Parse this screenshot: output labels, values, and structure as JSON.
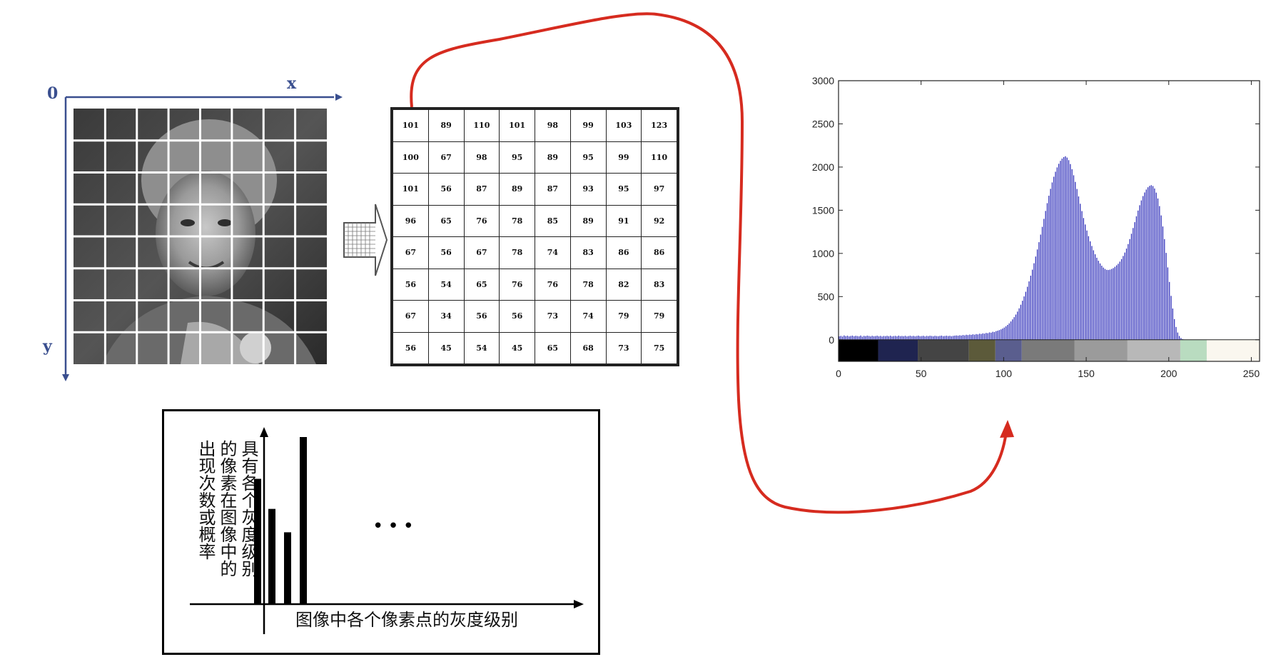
{
  "image_grid": {
    "origin_label": "0",
    "x_axis_label": "x",
    "y_axis_label": "y"
  },
  "pixel_matrix": {
    "rows": [
      [
        "101",
        "89",
        "110",
        "101",
        "98",
        "99",
        "103",
        "123"
      ],
      [
        "100",
        "67",
        "98",
        "95",
        "89",
        "95",
        "99",
        "110"
      ],
      [
        "101",
        "56",
        "87",
        "89",
        "87",
        "93",
        "95",
        "97"
      ],
      [
        "96",
        "65",
        "76",
        "78",
        "85",
        "89",
        "91",
        "92"
      ],
      [
        "67",
        "56",
        "67",
        "78",
        "74",
        "83",
        "86",
        "86"
      ],
      [
        "56",
        "54",
        "65",
        "76",
        "76",
        "78",
        "82",
        "83"
      ],
      [
        "67",
        "34",
        "56",
        "56",
        "73",
        "74",
        "79",
        "79"
      ],
      [
        "56",
        "45",
        "54",
        "45",
        "65",
        "68",
        "73",
        "75"
      ]
    ]
  },
  "concept_diagram": {
    "y_label_columns": [
      "具有各个灰度级别",
      "的像素在图像中的",
      "出现次数或概率"
    ],
    "x_label": "图像中各个像素点的灰度级别",
    "ellipsis": "•••",
    "bar_values": [
      0.75,
      0.57,
      0.43,
      1.0
    ]
  },
  "colors": {
    "grid_axis": "#3a4f8f",
    "arrow": "#d62b1f",
    "hist_bar": "#2a2ab8"
  },
  "chart_data": {
    "type": "bar",
    "xlim": [
      0,
      255
    ],
    "ylim": [
      -250,
      3000
    ],
    "x_ticks": [
      "0",
      "50",
      "100",
      "150",
      "200",
      "250"
    ],
    "y_ticks": [
      "0",
      "500",
      "1000",
      "1500",
      "2000",
      "2500",
      "3000"
    ],
    "x_tick_values": [
      0,
      50,
      100,
      150,
      200,
      250
    ],
    "y_tick_values": [
      0,
      500,
      1000,
      1500,
      2000,
      2500,
      3000
    ],
    "grid": false,
    "peaks": [
      {
        "x": 135,
        "y": 2150
      },
      {
        "x": 200,
        "y": 1800
      }
    ],
    "valley": {
      "x": 170,
      "y": 820
    },
    "series": [
      {
        "values": [
          40,
          45,
          38,
          50,
          42,
          47,
          39,
          44,
          48,
          41,
          46,
          43,
          40,
          49,
          37,
          45,
          42,
          48,
          44,
          39,
          46,
          41,
          43,
          47,
          40,
          45,
          38,
          44,
          42,
          46,
          41,
          47,
          39,
          43,
          45,
          40,
          48,
          42,
          44,
          41,
          46,
          39,
          43,
          47,
          42,
          45,
          40,
          44,
          48,
          41,
          43,
          46,
          39,
          45,
          42,
          47,
          44,
          40,
          46,
          43,
          41,
          45,
          48,
          42,
          44,
          47,
          43,
          46,
          41,
          45,
          48,
          50,
          47,
          52,
          49,
          55,
          51,
          58,
          54,
          60,
          57,
          63,
          59,
          66,
          62,
          70,
          67,
          74,
          71,
          79,
          76,
          85,
          82,
          92,
          90,
          100,
          105,
          112,
          120,
          130,
          142,
          156,
          172,
          190,
          212,
          236,
          262,
          292,
          326,
          364,
          406,
          452,
          502,
          556,
          614,
          676,
          742,
          812,
          886,
          964,
          1046,
          1130,
          1218,
          1308,
          1400,
          1492,
          1582,
          1668,
          1748,
          1822,
          1888,
          1946,
          1996,
          2038,
          2072,
          2098,
          2115,
          2125,
          2110,
          2080,
          2035,
          1975,
          1905,
          1828,
          1746,
          1660,
          1575,
          1490,
          1410,
          1335,
          1265,
          1200,
          1140,
          1086,
          1036,
          990,
          950,
          915,
          884,
          858,
          836,
          820,
          810,
          808,
          812,
          820,
          830,
          845,
          862,
          880,
          905,
          935,
          970,
          1010,
          1056,
          1108,
          1166,
          1228,
          1294,
          1362,
          1430,
          1496,
          1558,
          1614,
          1664,
          1706,
          1740,
          1766,
          1782,
          1790,
          1780,
          1752,
          1704,
          1636,
          1548,
          1440,
          1312,
          1166,
          1006,
          838,
          670,
          508,
          362,
          240,
          148,
          84,
          44,
          20,
          8,
          3,
          1,
          0,
          0,
          0,
          0,
          0,
          0,
          0,
          0,
          0,
          0,
          0,
          0,
          0,
          0,
          0,
          0,
          0,
          0,
          0,
          0,
          0,
          0,
          0,
          0,
          0,
          0
        ]
      }
    ],
    "colorbar_segments": [
      {
        "from": 0,
        "to": 24,
        "color": "#000000"
      },
      {
        "from": 24,
        "to": 48,
        "color": "#1f2450"
      },
      {
        "from": 48,
        "to": 79,
        "color": "#444444"
      },
      {
        "from": 79,
        "to": 95,
        "color": "#5c5a3a"
      },
      {
        "from": 95,
        "to": 111,
        "color": "#5a5e8e"
      },
      {
        "from": 111,
        "to": 143,
        "color": "#7a7a7a"
      },
      {
        "from": 143,
        "to": 175,
        "color": "#9b9b9b"
      },
      {
        "from": 175,
        "to": 207,
        "color": "#b8b8b8"
      },
      {
        "from": 207,
        "to": 223,
        "color": "#b9dcc0"
      },
      {
        "from": 223,
        "to": 255,
        "color": "#faf7ef"
      }
    ]
  }
}
